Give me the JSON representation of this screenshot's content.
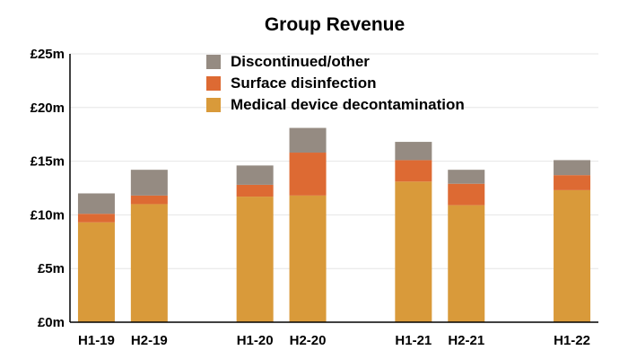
{
  "chart_data": {
    "type": "bar",
    "stacked": true,
    "title": "Group Revenue",
    "xlabel": "",
    "ylabel": "",
    "ylim": [
      0,
      25
    ],
    "y_ticks": [
      {
        "value": 0,
        "label": "£0m"
      },
      {
        "value": 5,
        "label": "£5m"
      },
      {
        "value": 10,
        "label": "£10m"
      },
      {
        "value": 15,
        "label": "£15m"
      },
      {
        "value": 20,
        "label": "£20m"
      },
      {
        "value": 25,
        "label": "£25m"
      }
    ],
    "grid": true,
    "legend_position": "top",
    "categories": [
      "H1-19",
      "H2-19",
      "",
      "H1-20",
      "H2-20",
      "",
      "H1-21",
      "H2-21",
      "",
      "H1-22"
    ],
    "series": [
      {
        "name": "Medical device decontamination",
        "color": "#D99A3A",
        "values": [
          9.3,
          11.0,
          null,
          11.7,
          11.8,
          null,
          13.1,
          10.9,
          null,
          12.3
        ]
      },
      {
        "name": "Surface disinfection",
        "color": "#DD6A33",
        "values": [
          0.8,
          0.8,
          null,
          1.1,
          4.0,
          null,
          2.0,
          2.0,
          null,
          1.4
        ]
      },
      {
        "name": "Discontinued/other",
        "color": "#958B82",
        "values": [
          1.9,
          2.4,
          null,
          1.8,
          2.3,
          null,
          1.7,
          1.3,
          null,
          1.4
        ]
      }
    ],
    "legend_order": [
      "Discontinued/other",
      "Surface disinfection",
      "Medical device decontamination"
    ]
  }
}
